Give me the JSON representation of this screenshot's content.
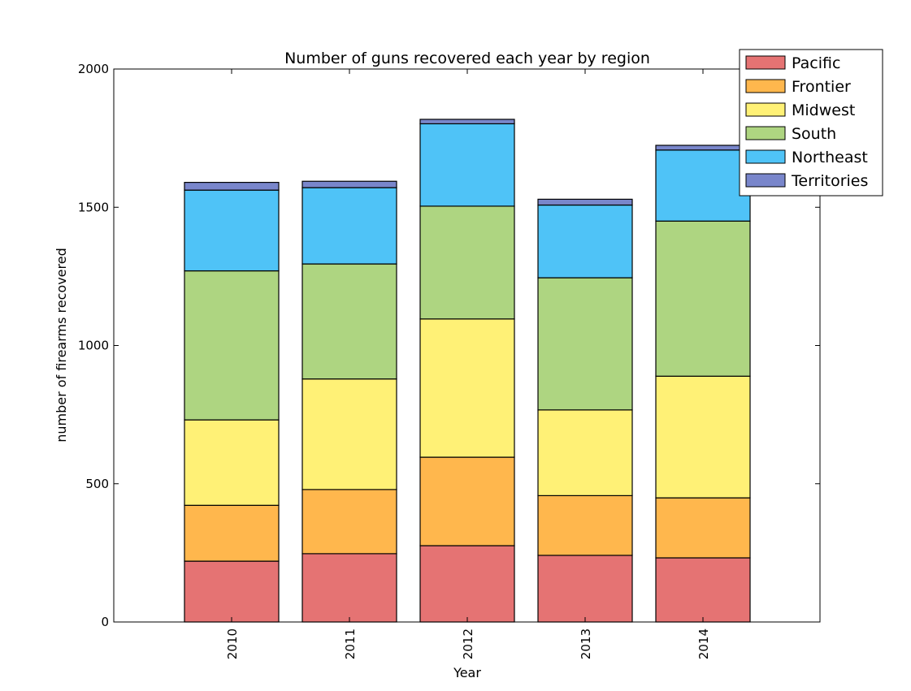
{
  "chart_data": {
    "type": "bar",
    "stacked": true,
    "title": "Number of guns recovered each year by region",
    "xlabel": "Year",
    "ylabel": "number of firearms recovered",
    "ylim": [
      0,
      2000
    ],
    "yticks": [
      "0",
      "500",
      "1000",
      "1500",
      "2000"
    ],
    "categories": [
      "2010",
      "2011",
      "2012",
      "2013",
      "2014"
    ],
    "legend_position": "top-right",
    "grid": false,
    "series": [
      {
        "name": "Pacific",
        "color": "#e57373",
        "values": [
          220,
          247,
          276,
          241,
          232
        ]
      },
      {
        "name": "Frontier",
        "color": "#ffb74d",
        "values": [
          202,
          232,
          320,
          216,
          217
        ]
      },
      {
        "name": "Midwest",
        "color": "#fff176",
        "values": [
          309,
          400,
          500,
          310,
          440
        ]
      },
      {
        "name": "South",
        "color": "#aed581",
        "values": [
          539,
          416,
          408,
          478,
          561
        ]
      },
      {
        "name": "Northeast",
        "color": "#4fc3f7",
        "values": [
          292,
          276,
          298,
          263,
          257
        ]
      },
      {
        "name": "Territories",
        "color": "#7986cb",
        "values": [
          28,
          23,
          16,
          21,
          17
        ]
      }
    ]
  }
}
